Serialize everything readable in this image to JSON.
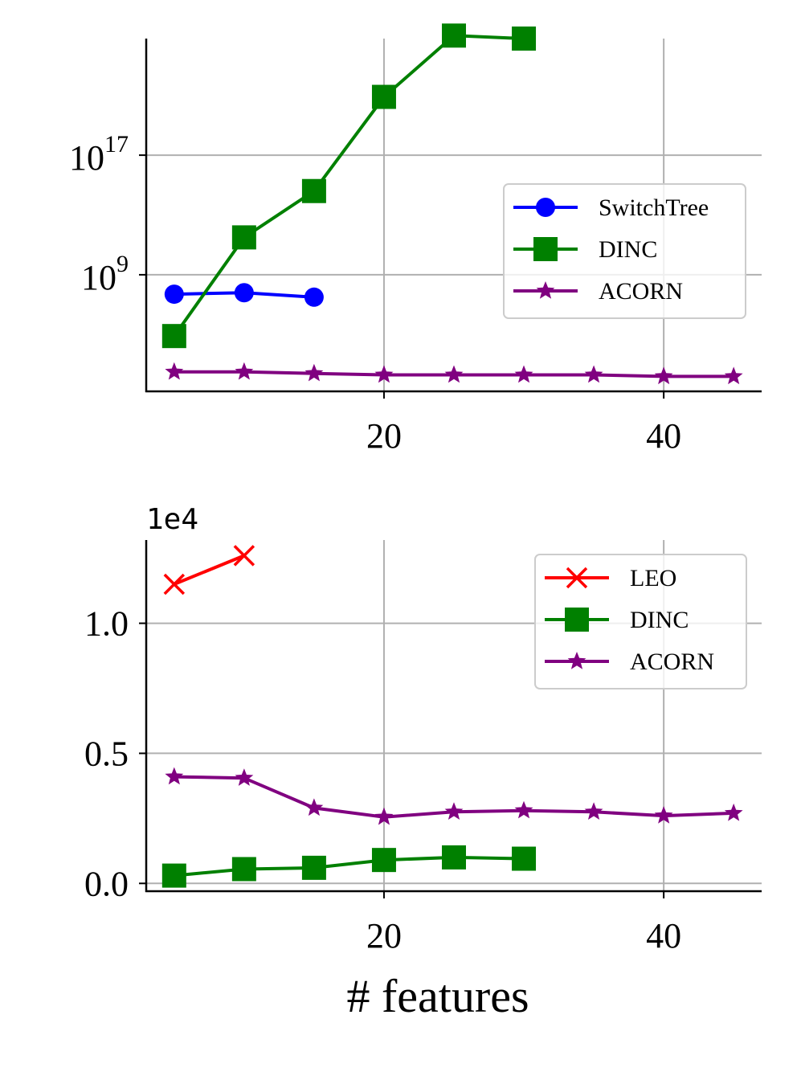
{
  "chart_data": [
    {
      "type": "line",
      "yscale": "log",
      "title": "",
      "xlabel": "",
      "ylabel": "",
      "xlim": [
        3,
        47
      ],
      "ylim_log10": [
        1.2,
        24.8
      ],
      "xticks": [
        20,
        40
      ],
      "xtick_labels": [
        "20",
        "40"
      ],
      "yticks_log10": [
        9,
        17
      ],
      "ytick_labels": [
        {
          "base": "10",
          "exp": "9"
        },
        {
          "base": "10",
          "exp": "17"
        }
      ],
      "grid": true,
      "legend_position": "center-right",
      "series": [
        {
          "name": "SwitchTree",
          "color": "#0000ff",
          "marker": "circle",
          "x": [
            5,
            10,
            15
          ],
          "log10_values": [
            7.7,
            7.8,
            7.5
          ]
        },
        {
          "name": "DINC",
          "color": "#008000",
          "marker": "square",
          "x": [
            5,
            10,
            15,
            20,
            25,
            30
          ],
          "log10_values": [
            4.9,
            11.5,
            14.6,
            20.9,
            25.0,
            24.8
          ]
        },
        {
          "name": "ACORN",
          "color": "#800080",
          "marker": "star",
          "x": [
            5,
            10,
            15,
            20,
            25,
            30,
            35,
            40,
            45
          ],
          "log10_values": [
            2.5,
            2.5,
            2.4,
            2.3,
            2.3,
            2.3,
            2.3,
            2.2,
            2.2
          ]
        }
      ]
    },
    {
      "type": "line",
      "title": "",
      "xlabel": "# features",
      "ylabel": "",
      "offset_label": "1e4",
      "xlim": [
        3,
        47
      ],
      "ylim": [
        -0.03,
        1.32
      ],
      "xticks": [
        20,
        40
      ],
      "xtick_labels": [
        "20",
        "40"
      ],
      "yticks": [
        0.0,
        0.5,
        1.0
      ],
      "ytick_labels": [
        "0.0",
        "0.5",
        "1.0"
      ],
      "grid": true,
      "legend_position": "top-right",
      "series": [
        {
          "name": "LEO",
          "color": "#ff0000",
          "marker": "x",
          "x": [
            5,
            10
          ],
          "values": [
            1.15,
            1.26
          ]
        },
        {
          "name": "DINC",
          "color": "#008000",
          "marker": "square",
          "x": [
            5,
            10,
            15,
            20,
            25,
            30
          ],
          "values": [
            0.03,
            0.055,
            0.06,
            0.09,
            0.1,
            0.095
          ]
        },
        {
          "name": "ACORN",
          "color": "#800080",
          "marker": "star",
          "x": [
            5,
            10,
            15,
            20,
            25,
            30,
            35,
            40,
            45
          ],
          "values": [
            0.41,
            0.405,
            0.29,
            0.255,
            0.275,
            0.28,
            0.275,
            0.26,
            0.27
          ]
        }
      ]
    }
  ]
}
